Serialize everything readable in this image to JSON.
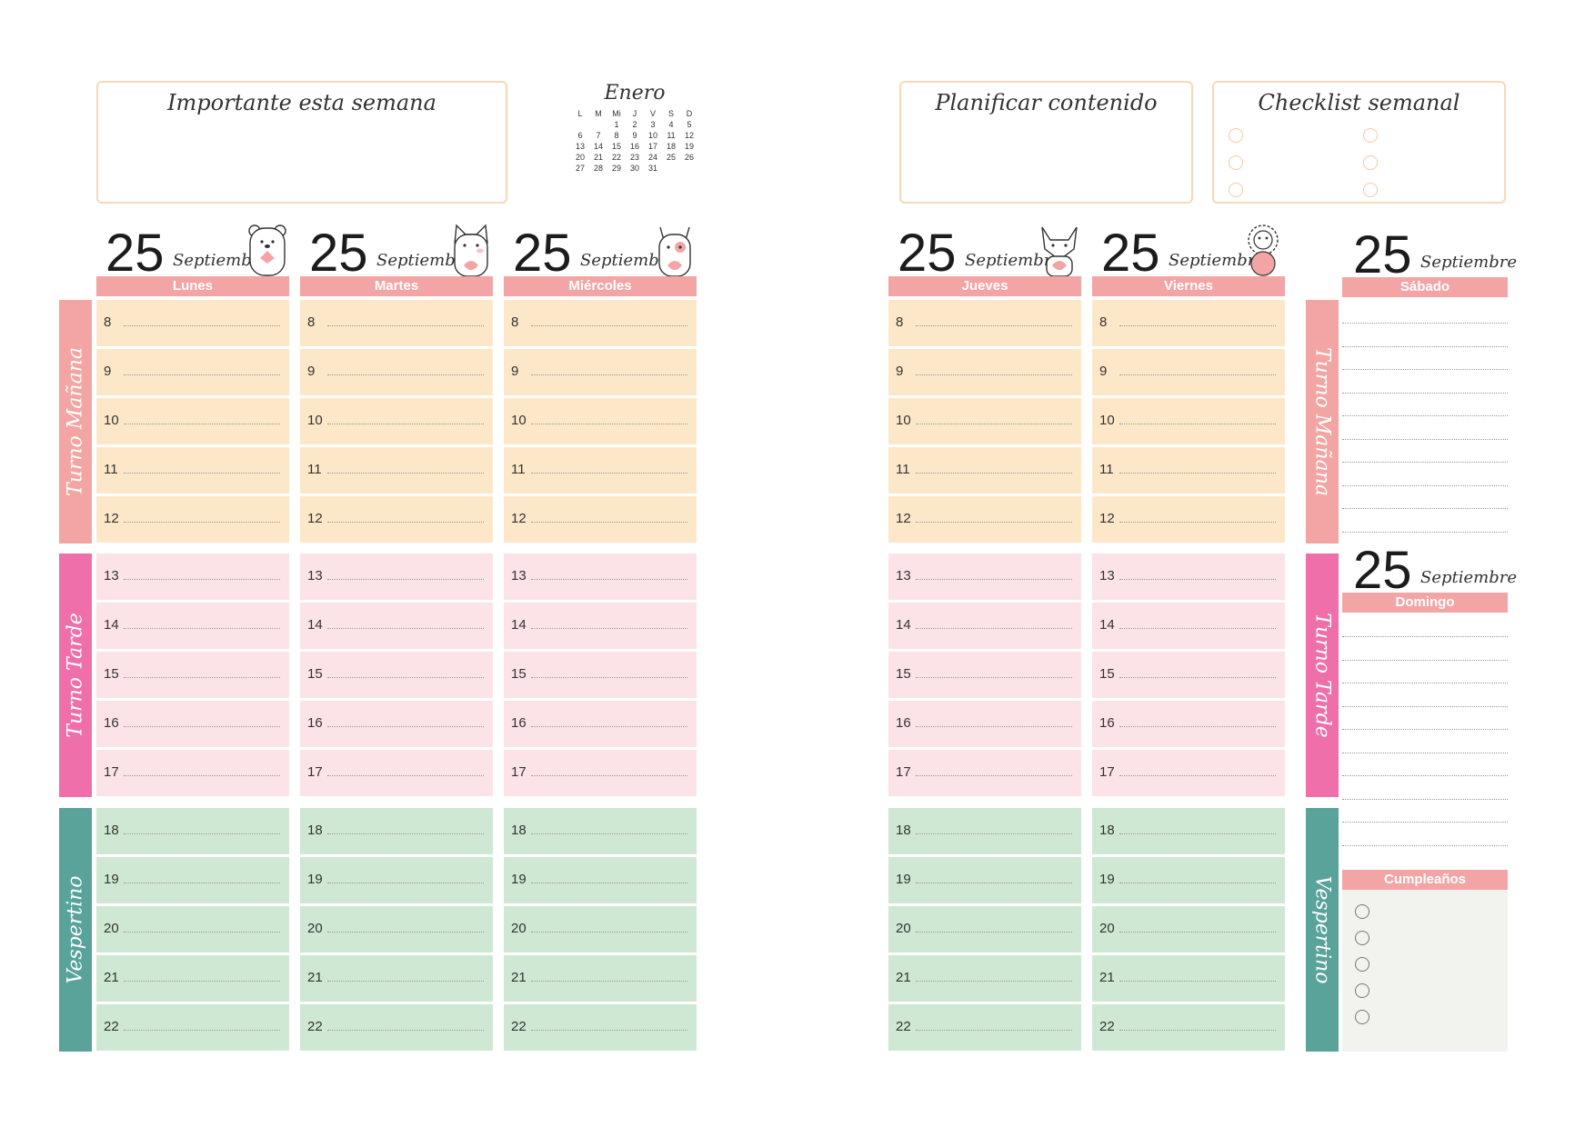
{
  "left": {
    "important_title": "Importante esta semana",
    "calendar": {
      "month": "Enero",
      "headers": [
        "L",
        "M",
        "Mi",
        "J",
        "V",
        "S",
        "D"
      ],
      "rows": [
        [
          "",
          "",
          "1",
          "2",
          "3",
          "4",
          "5"
        ],
        [
          "6",
          "7",
          "8",
          "9",
          "10",
          "11",
          "12"
        ],
        [
          "13",
          "14",
          "15",
          "16",
          "17",
          "18",
          "19"
        ],
        [
          "20",
          "21",
          "22",
          "23",
          "24",
          "25",
          "26"
        ],
        [
          "27",
          "28",
          "29",
          "30",
          "31",
          "",
          ""
        ]
      ]
    },
    "days": [
      {
        "num": "25",
        "month": "Septiembre",
        "name": "Lunes"
      },
      {
        "num": "25",
        "month": "Septiembre",
        "name": "Martes"
      },
      {
        "num": "25",
        "month": "Septiembre",
        "name": "Miércoles"
      }
    ]
  },
  "right": {
    "plan_title": "Planificar contenido",
    "checklist_title": "Checklist semanal",
    "days": [
      {
        "num": "25",
        "month": "Septiembre",
        "name": "Jueves"
      },
      {
        "num": "25",
        "month": "Septiembre",
        "name": "Viernes"
      }
    ],
    "saturday": {
      "num": "25",
      "month": "Septiembre",
      "name": "Sábado"
    },
    "sunday": {
      "num": "25",
      "month": "Septiembre",
      "name": "Domingo"
    },
    "birthdays": "Cumpleaños"
  },
  "shifts": {
    "morning": "Turno Mañana",
    "afternoon": "Turno Tarde",
    "evening": "Vespertino"
  },
  "hours": {
    "morning": [
      "8",
      "9",
      "10",
      "11",
      "12"
    ],
    "afternoon": [
      "13",
      "14",
      "15",
      "16",
      "17"
    ],
    "evening": [
      "18",
      "19",
      "20",
      "21",
      "22"
    ]
  },
  "colors": {
    "peach": "#fde7c9",
    "pink": "#fbe3e8",
    "green": "#cfe8d3",
    "header": "#f3a5a5",
    "morning_side": "#f2a5a3",
    "afternoon_side": "#ee6fa9",
    "evening_side": "#5aa39b",
    "birthday_bg": "#f2f2ee"
  }
}
